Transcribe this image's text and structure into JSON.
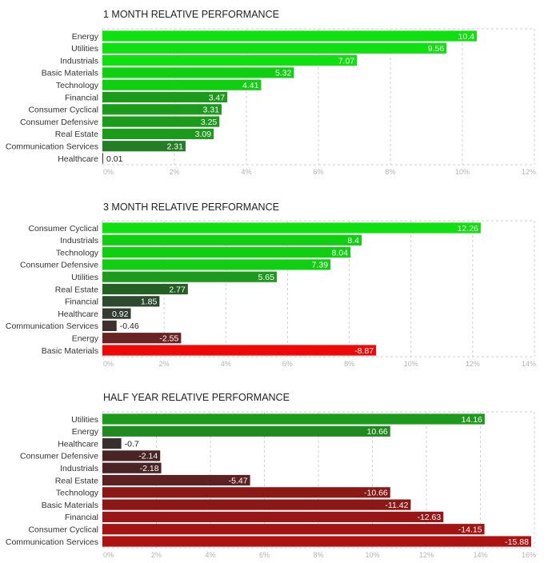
{
  "chart_data": [
    {
      "type": "bar",
      "orientation": "horizontal",
      "title": "1 MONTH RELATIVE PERFORMANCE",
      "categories": [
        "Energy",
        "Utilities",
        "Industrials",
        "Basic Materials",
        "Technology",
        "Financial",
        "Consumer Cyclical",
        "Consumer Defensive",
        "Real Estate",
        "Communication Services",
        "Healthcare"
      ],
      "values": [
        10.4,
        9.56,
        7.07,
        5.32,
        4.41,
        3.47,
        3.31,
        3.25,
        3.09,
        2.31,
        0.01
      ],
      "value_labels": [
        "10.4",
        "9.56",
        "7.07",
        "5.32",
        "4.41",
        "3.47",
        "3.31",
        "3.25",
        "3.09",
        "2.31",
        "0.01"
      ],
      "xlim": [
        0,
        12
      ],
      "ticks": [
        "0%",
        "2%",
        "4%",
        "6%",
        "8%",
        "10%",
        "12%"
      ],
      "grid": true,
      "colors": [
        "#10e010",
        "#10e010",
        "#10e010",
        "#10cf10",
        "#10cf10",
        "#1b9a1b",
        "#1b9a1b",
        "#1b9a1b",
        "#1b9a1b",
        "#257d25",
        "#3a3a3a"
      ]
    },
    {
      "type": "bar",
      "orientation": "horizontal",
      "title": "3 MONTH RELATIVE PERFORMANCE",
      "categories": [
        "Consumer Cyclical",
        "Industrials",
        "Technology",
        "Consumer Defensive",
        "Utilities",
        "Real Estate",
        "Financial",
        "Healthcare",
        "Communication Services",
        "Energy",
        "Basic Materials"
      ],
      "values": [
        12.26,
        8.4,
        8.04,
        7.39,
        5.65,
        2.77,
        1.85,
        0.92,
        -0.46,
        -2.55,
        -8.87
      ],
      "value_labels": [
        "12.26",
        "8.4",
        "8.04",
        "7.39",
        "5.65",
        "2.77",
        "1.85",
        "0.92",
        "-0.46",
        "-2.55",
        "-8.87"
      ],
      "xlim": [
        0,
        14
      ],
      "ticks": [
        "0%",
        "2%",
        "4%",
        "6%",
        "8%",
        "10%",
        "12%",
        "14%"
      ],
      "grid": true,
      "colors": [
        "#10e010",
        "#10cf10",
        "#10cf10",
        "#10cf10",
        "#1b9a1b",
        "#245f24",
        "#2e4a2e",
        "#323c32",
        "#3f3030",
        "#6a2323",
        "#ee0808"
      ]
    },
    {
      "type": "bar",
      "orientation": "horizontal",
      "title": "HALF YEAR RELATIVE PERFORMANCE",
      "categories": [
        "Utilities",
        "Energy",
        "Healthcare",
        "Consumer Defensive",
        "Industrials",
        "Real Estate",
        "Technology",
        "Basic Materials",
        "Financial",
        "Consumer Cyclical",
        "Communication Services"
      ],
      "values": [
        14.16,
        10.66,
        -0.7,
        -2.14,
        -2.18,
        -5.47,
        -10.66,
        -11.42,
        -12.63,
        -14.15,
        -15.88
      ],
      "value_labels": [
        "14.16",
        "10.66",
        "-0.7",
        "-2.14",
        "-2.18",
        "-5.47",
        "-10.66",
        "-11.42",
        "-12.63",
        "-14.15",
        "-15.88"
      ],
      "xlim": [
        0,
        16
      ],
      "ticks": [
        "0%",
        "2%",
        "4%",
        "6%",
        "8%",
        "10%",
        "12%",
        "14%",
        "16%"
      ],
      "grid": true,
      "colors": [
        "#1b9a1b",
        "#1f8a1f",
        "#3a2f2f",
        "#4a2424",
        "#4a2424",
        "#5e2121",
        "#8c1717",
        "#8c1717",
        "#9a1515",
        "#a51212",
        "#ad1111"
      ]
    }
  ]
}
